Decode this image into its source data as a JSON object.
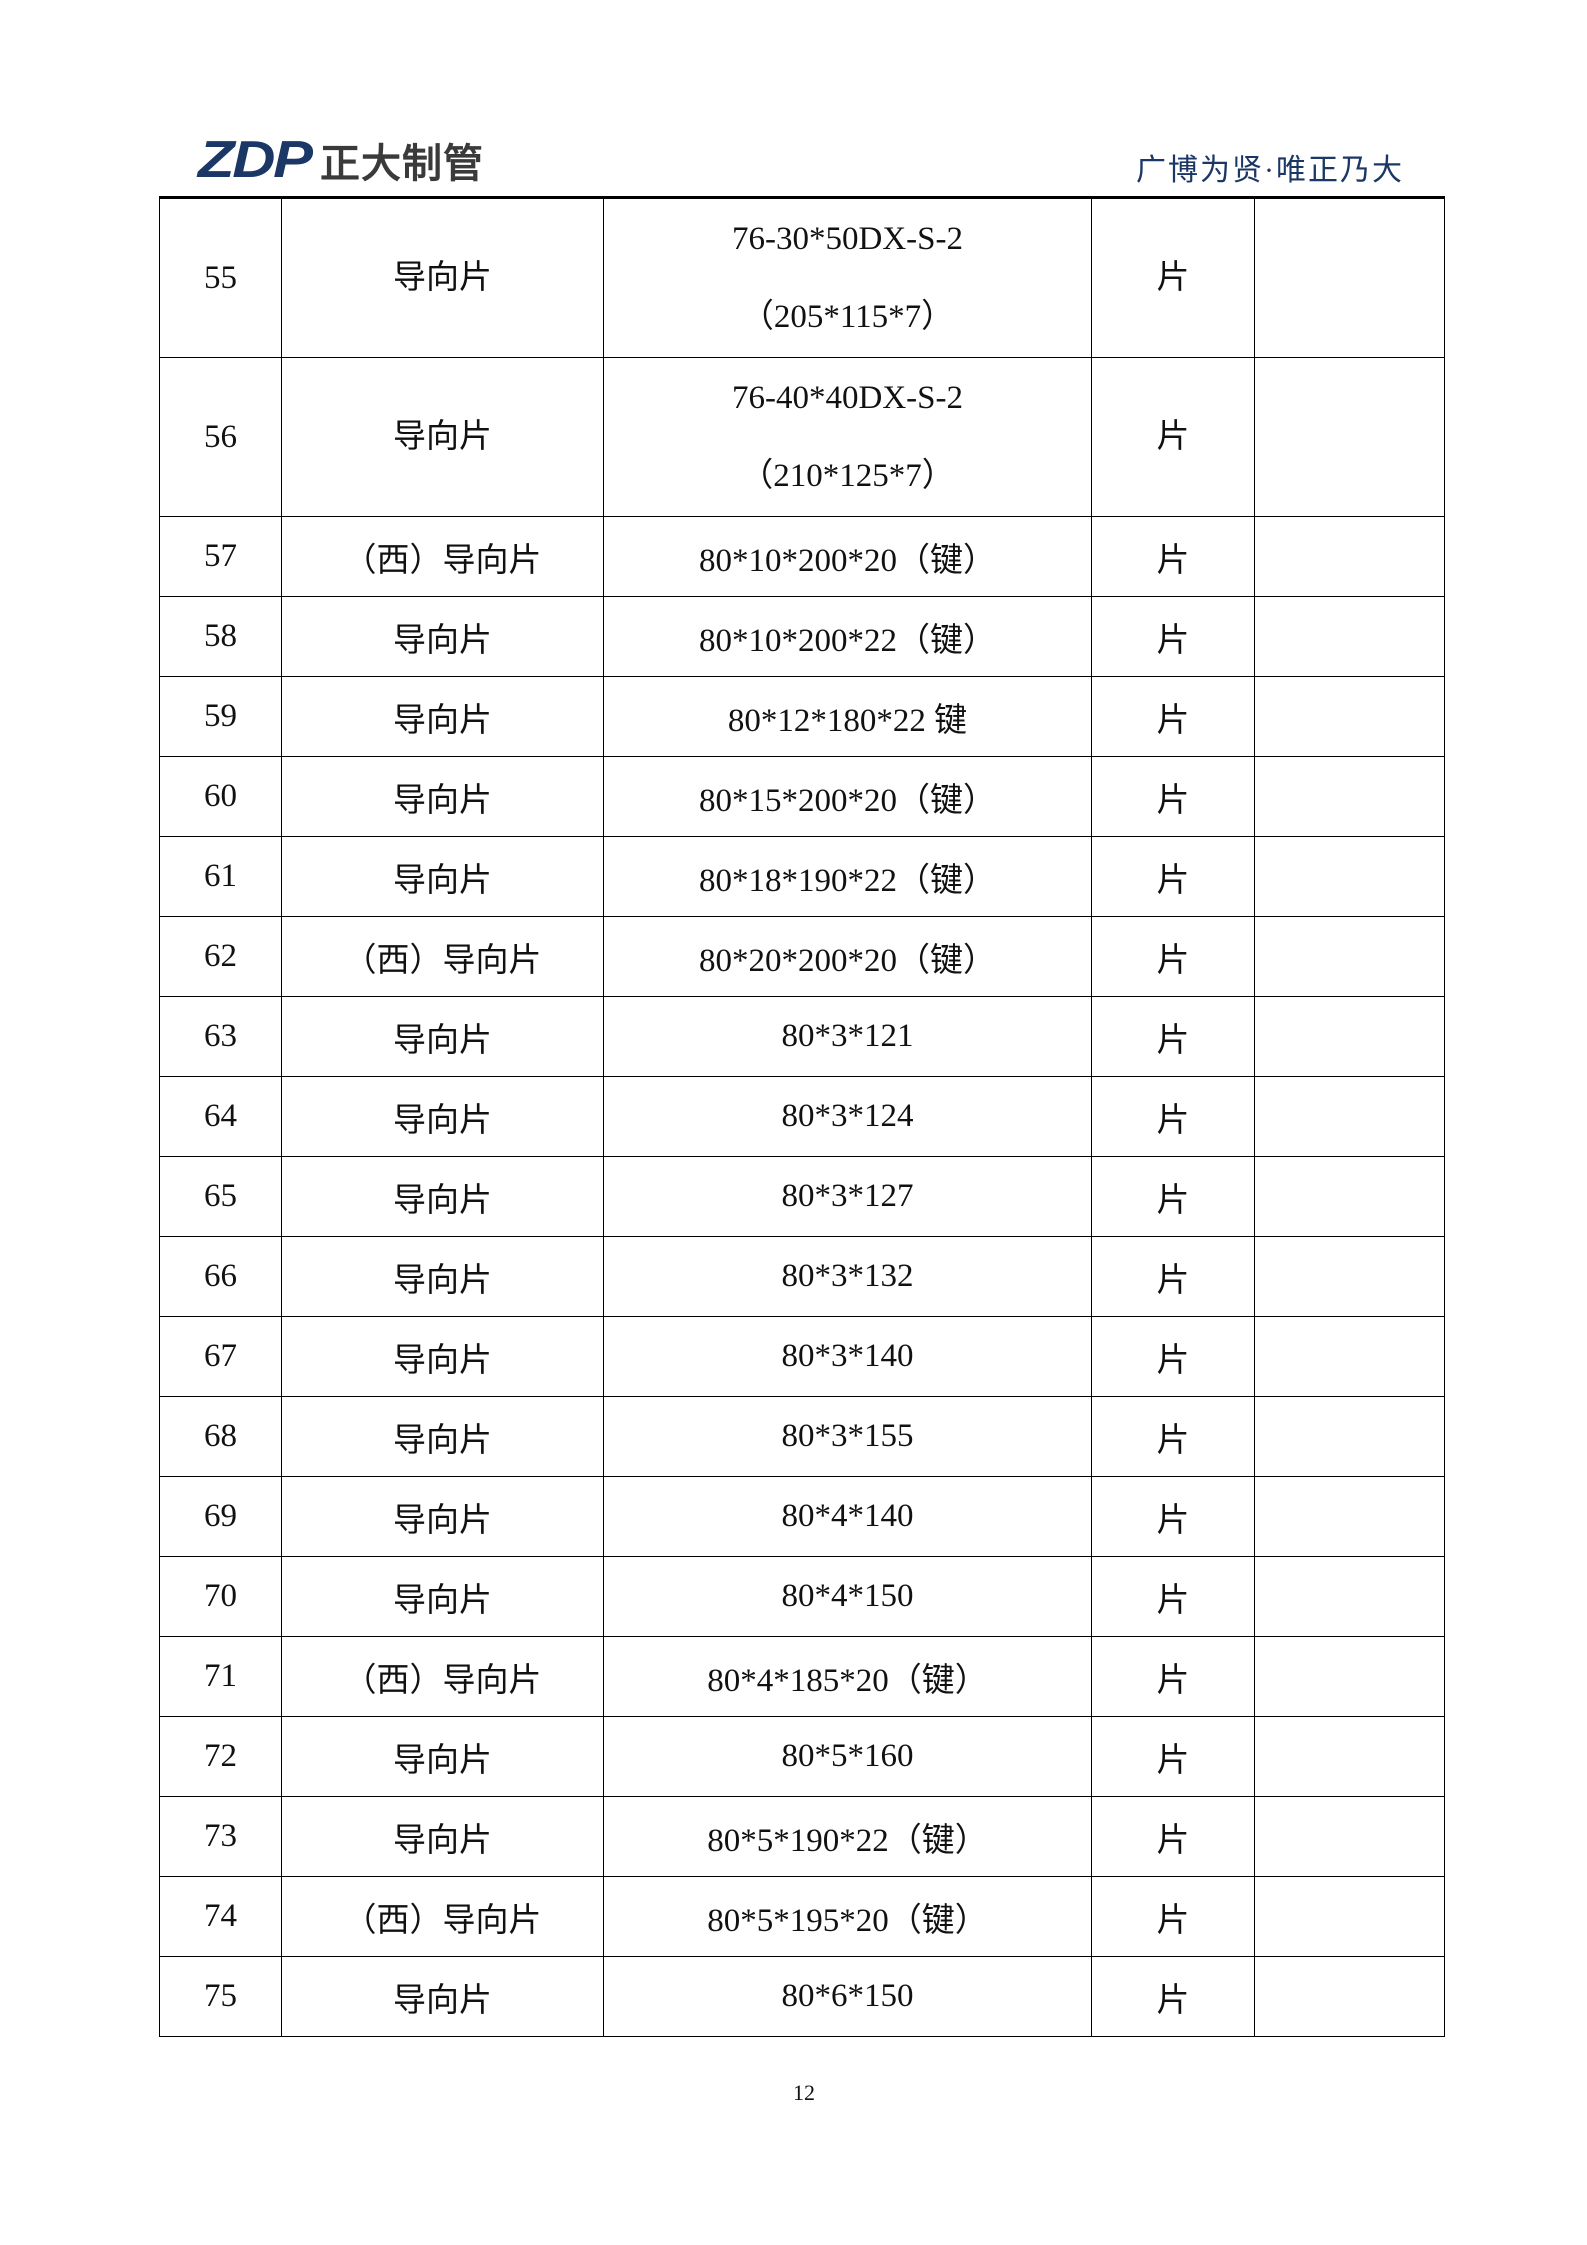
{
  "header": {
    "logo_mark": "ZDP",
    "logo_text": "正大制管",
    "slogan": "广博为贤·唯正乃大"
  },
  "colors": {
    "brand_blue": "#1b3766",
    "logo_gray": "#3a3a3a"
  },
  "table": {
    "rows": [
      {
        "no": "55",
        "name": "导向片",
        "spec": [
          "76-30*50DX-S-2",
          "（205*115*7）"
        ],
        "unit": "片",
        "note": ""
      },
      {
        "no": "56",
        "name": "导向片",
        "spec": [
          "76-40*40DX-S-2",
          "（210*125*7）"
        ],
        "unit": "片",
        "note": ""
      },
      {
        "no": "57",
        "name": "（西）导向片",
        "spec": [
          "80*10*200*20（键）"
        ],
        "unit": "片",
        "note": ""
      },
      {
        "no": "58",
        "name": "导向片",
        "spec": [
          "80*10*200*22（键）"
        ],
        "unit": "片",
        "note": ""
      },
      {
        "no": "59",
        "name": "导向片",
        "spec": [
          "80*12*180*22 键"
        ],
        "unit": "片",
        "note": ""
      },
      {
        "no": "60",
        "name": "导向片",
        "spec": [
          "80*15*200*20（键）"
        ],
        "unit": "片",
        "note": ""
      },
      {
        "no": "61",
        "name": "导向片",
        "spec": [
          "80*18*190*22（键）"
        ],
        "unit": "片",
        "note": ""
      },
      {
        "no": "62",
        "name": "（西）导向片",
        "spec": [
          "80*20*200*20（键）"
        ],
        "unit": "片",
        "note": ""
      },
      {
        "no": "63",
        "name": "导向片",
        "spec": [
          "80*3*121"
        ],
        "unit": "片",
        "note": ""
      },
      {
        "no": "64",
        "name": "导向片",
        "spec": [
          "80*3*124"
        ],
        "unit": "片",
        "note": ""
      },
      {
        "no": "65",
        "name": "导向片",
        "spec": [
          "80*3*127"
        ],
        "unit": "片",
        "note": ""
      },
      {
        "no": "66",
        "name": "导向片",
        "spec": [
          "80*3*132"
        ],
        "unit": "片",
        "note": ""
      },
      {
        "no": "67",
        "name": "导向片",
        "spec": [
          "80*3*140"
        ],
        "unit": "片",
        "note": ""
      },
      {
        "no": "68",
        "name": "导向片",
        "spec": [
          "80*3*155"
        ],
        "unit": "片",
        "note": ""
      },
      {
        "no": "69",
        "name": "导向片",
        "spec": [
          "80*4*140"
        ],
        "unit": "片",
        "note": ""
      },
      {
        "no": "70",
        "name": "导向片",
        "spec": [
          "80*4*150"
        ],
        "unit": "片",
        "note": ""
      },
      {
        "no": "71",
        "name": "（西）导向片",
        "spec": [
          "80*4*185*20（键）"
        ],
        "unit": "片",
        "note": ""
      },
      {
        "no": "72",
        "name": "导向片",
        "spec": [
          "80*5*160"
        ],
        "unit": "片",
        "note": ""
      },
      {
        "no": "73",
        "name": "导向片",
        "spec": [
          "80*5*190*22（键）"
        ],
        "unit": "片",
        "note": ""
      },
      {
        "no": "74",
        "name": "（西）导向片",
        "spec": [
          "80*5*195*20（键）"
        ],
        "unit": "片",
        "note": ""
      },
      {
        "no": "75",
        "name": "导向片",
        "spec": [
          "80*6*150"
        ],
        "unit": "片",
        "note": ""
      }
    ]
  },
  "footer": {
    "page_number": "12"
  }
}
